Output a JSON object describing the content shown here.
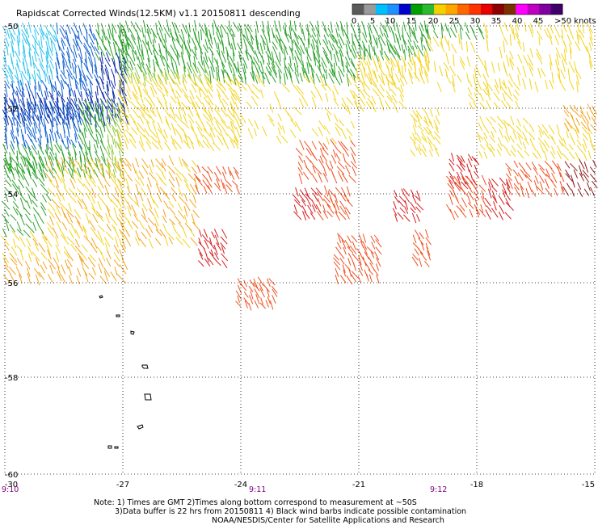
{
  "header": {
    "title": "Rapidscat Corrected Winds(12.5KM) v1.1 20150811 descending"
  },
  "legend": {
    "ticks": [
      "0",
      "5",
      "10",
      "15",
      "20",
      "25",
      "30",
      "35",
      "40",
      "45",
      ">50 knots"
    ],
    "colors": [
      "#5a5a5a",
      "#9a9a9a",
      "#00bfff",
      "#1e90ff",
      "#0000cd",
      "#00a000",
      "#2eb82e",
      "#f5d000",
      "#ffa500",
      "#ff6600",
      "#ff3300",
      "#e60000",
      "#8b0000",
      "#7a3300",
      "#ff00ff",
      "#c000c0",
      "#8000a0",
      "#40006a"
    ]
  },
  "axes": {
    "lat_labels": [
      "-50",
      "-52",
      "-54",
      "-56",
      "-58",
      "-60"
    ],
    "lon_labels": [
      "-30",
      "-27",
      "-24",
      "-21",
      "-18",
      "-15"
    ],
    "time_labels": [
      "9:10",
      "9:11",
      "9:12"
    ],
    "time_color": "#800080"
  },
  "footer": {
    "note1": "Note: 1) Times are GMT 2)Times along bottom correspond to measurement at ~50S",
    "note2": "3)Data buffer is 22 hrs from 20150811 4) Black wind barbs indicate possible contamination",
    "credit": "NOAA/NESDIS/Center for Satellite Applications and Research"
  },
  "wind_colors": {
    "light_blue": "#2ec4f0",
    "blue": "#1060d0",
    "dark_blue": "#0a2aa8",
    "green": "#2aa02a",
    "yellow_green": "#8cc83c",
    "yellow": "#f3d21c",
    "orange": "#f6a21e",
    "red_orange": "#f05020",
    "red": "#d51a1a",
    "dark_red": "#8b1a1a"
  }
}
